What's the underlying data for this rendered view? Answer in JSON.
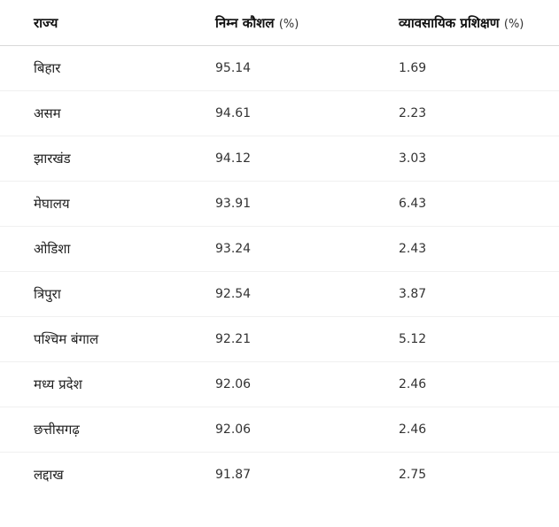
{
  "table": {
    "headers": {
      "state": "राज्य",
      "low_skill": "निम्न कौशल",
      "low_skill_unit": "(%)",
      "vocational": "व्यावसायिक प्रशिक्षण",
      "vocational_unit": "(%)"
    },
    "rows": [
      {
        "state": "बिहार",
        "low_skill": "95.14",
        "vocational": "1.69"
      },
      {
        "state": "असम",
        "low_skill": "94.61",
        "vocational": "2.23"
      },
      {
        "state": "झारखंड",
        "low_skill": "94.12",
        "vocational": "3.03"
      },
      {
        "state": "मेघालय",
        "low_skill": "93.91",
        "vocational": "6.43"
      },
      {
        "state": "ओडिशा",
        "low_skill": "93.24",
        "vocational": "2.43"
      },
      {
        "state": "त्रिपुरा",
        "low_skill": "92.54",
        "vocational": "3.87"
      },
      {
        "state": "पश्चिम बंगाल",
        "low_skill": "92.21",
        "vocational": "5.12"
      },
      {
        "state": "मध्य प्रदेश",
        "low_skill": "92.06",
        "vocational": "2.46"
      },
      {
        "state": "छत्तीसगढ़",
        "low_skill": "92.06",
        "vocational": "2.46"
      },
      {
        "state": "लद्दाख",
        "low_skill": "91.87",
        "vocational": "2.75"
      }
    ]
  }
}
